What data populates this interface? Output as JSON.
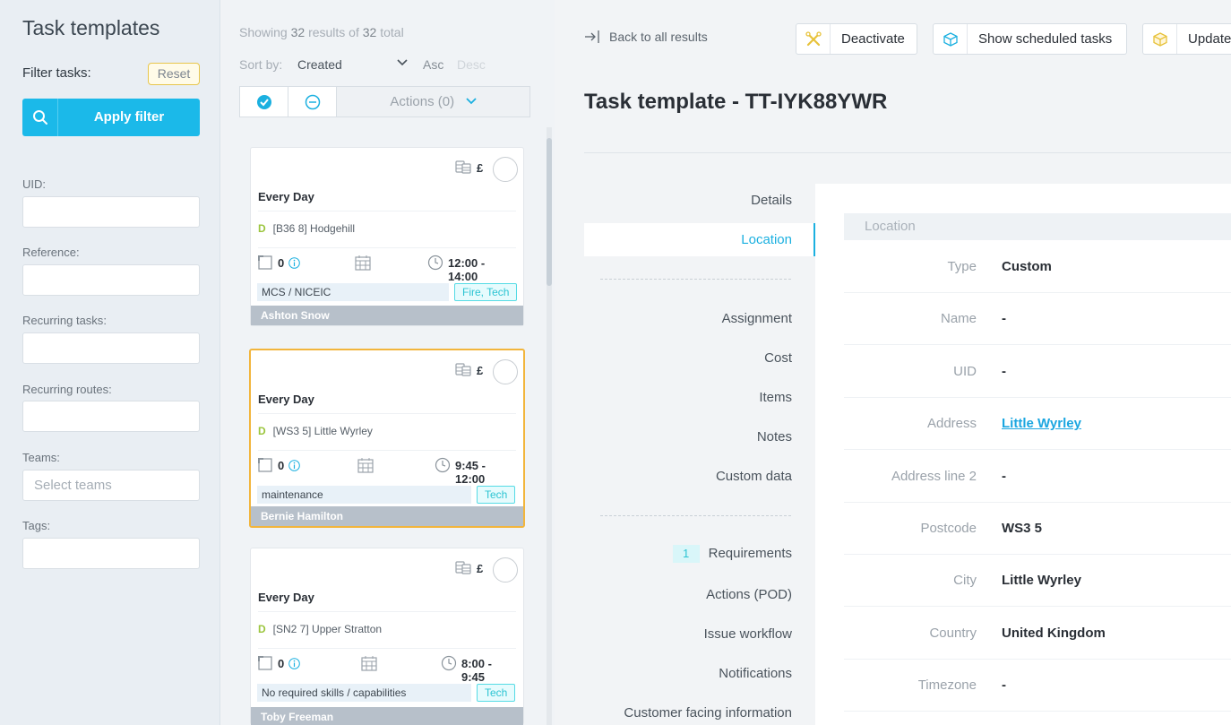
{
  "sidebar": {
    "title": "Task templates",
    "filter_label": "Filter tasks:",
    "reset_label": "Reset",
    "apply_label": "Apply filter",
    "fields": [
      {
        "label": "UID",
        "value": "",
        "placeholder": ""
      },
      {
        "label": "Reference",
        "value": "",
        "placeholder": ""
      },
      {
        "label": "Recurring tasks",
        "value": "",
        "placeholder": ""
      },
      {
        "label": "Recurring routes",
        "value": "",
        "placeholder": ""
      },
      {
        "label": "Teams",
        "value": "",
        "placeholder": "Select teams"
      },
      {
        "label": "Tags",
        "value": "",
        "placeholder": ""
      }
    ]
  },
  "list": {
    "showing_prefix": "Showing",
    "showing_count": "32",
    "showing_mid": "results of",
    "showing_total": "32",
    "showing_suffix": "total",
    "sort_label": "Sort by:",
    "sort_value": "Created",
    "asc_label": "Asc",
    "desc_label": "Desc",
    "actions_label": "Actions (0)",
    "cards": [
      {
        "currency": "£",
        "frequency": "Every Day",
        "loc_prefix": "D",
        "location": "[B36 8] Hodgehill",
        "count": "0",
        "time": "12:00 - 14:00",
        "skill": "MCS / NICEIC",
        "tag": "Fire, Tech",
        "assignee": "Ashton Snow",
        "selected": false
      },
      {
        "currency": "£",
        "frequency": "Every Day",
        "loc_prefix": "D",
        "location": "[WS3 5] Little Wyrley",
        "count": "0",
        "time": "9:45 - 12:00",
        "skill": "maintenance",
        "tag": "Tech",
        "assignee": "Bernie Hamilton",
        "selected": true
      },
      {
        "currency": "£",
        "frequency": "Every Day",
        "loc_prefix": "D",
        "location": "[SN2 7] Upper Stratton",
        "count": "0",
        "time": "8:00 - 9:45",
        "skill": "No required skills / capabilities",
        "tag": "Tech",
        "assignee": "Toby Freeman",
        "selected": false
      }
    ]
  },
  "detail": {
    "back_label": "Back to all results",
    "buttons": {
      "deactivate": "Deactivate",
      "scheduled": "Show scheduled tasks",
      "update": "Update"
    },
    "title": "Task template - TT-IYK88YWR",
    "nav": {
      "details": "Details",
      "location": "Location",
      "assignment": "Assignment",
      "cost": "Cost",
      "items": "Items",
      "notes": "Notes",
      "custom_data": "Custom data",
      "requirements_count": "1",
      "requirements": "Requirements",
      "actions_pod": "Actions (POD)",
      "issue_workflow": "Issue workflow",
      "notifications": "Notifications",
      "customer_facing": "Customer facing information"
    },
    "section_title": "Location",
    "fields": [
      {
        "key": "Type",
        "value": "Custom"
      },
      {
        "key": "Name",
        "value": "-"
      },
      {
        "key": "UID",
        "value": "-"
      },
      {
        "key": "Address",
        "value": "Little Wyrley"
      },
      {
        "key": "Address line 2",
        "value": "-"
      },
      {
        "key": "Postcode",
        "value": "WS3 5"
      },
      {
        "key": "City",
        "value": "Little Wyrley"
      },
      {
        "key": "Country",
        "value": "United Kingdom"
      },
      {
        "key": "Timezone",
        "value": "-"
      }
    ]
  },
  "colors": {
    "accent": "#1bb9e9",
    "selected_border": "#f2b53c",
    "tag": "#2cc4d2",
    "location_d": "#9bc53d"
  }
}
